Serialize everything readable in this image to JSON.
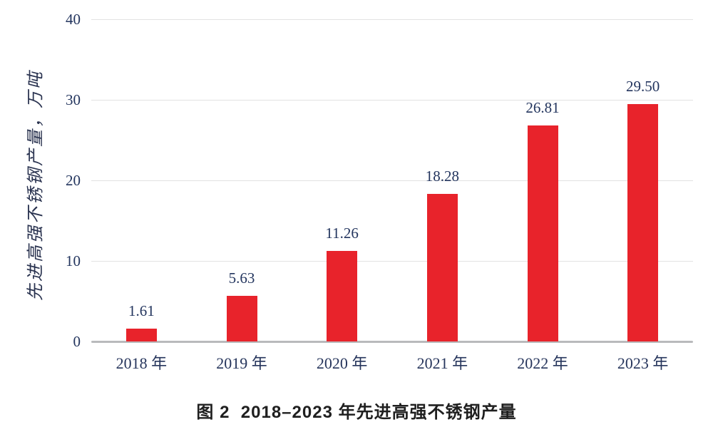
{
  "chart_data": {
    "type": "bar",
    "title": "",
    "caption_prefix": "图 2",
    "caption_text": "2018–2023 年先进高强不锈钢产量",
    "ylabel": "先进高强不锈钢产量，万吨",
    "xlabel": "",
    "categories": [
      "2018 年",
      "2019 年",
      "2020 年",
      "2021 年",
      "2022 年",
      "2023 年"
    ],
    "values": [
      1.61,
      5.63,
      11.26,
      18.28,
      26.81,
      29.5
    ],
    "value_labels": [
      "1.61",
      "5.63",
      "11.26",
      "18.28",
      "26.81",
      "29.50"
    ],
    "yticks": [
      0,
      10,
      20,
      30,
      40
    ],
    "ylim": [
      0,
      40
    ],
    "grid": "horizontal",
    "legend": "none",
    "bar_color": "#e8232b",
    "gridline_color": "#e2e2e2",
    "baseline_color": "#b9babc",
    "label_color": "#23355e"
  }
}
